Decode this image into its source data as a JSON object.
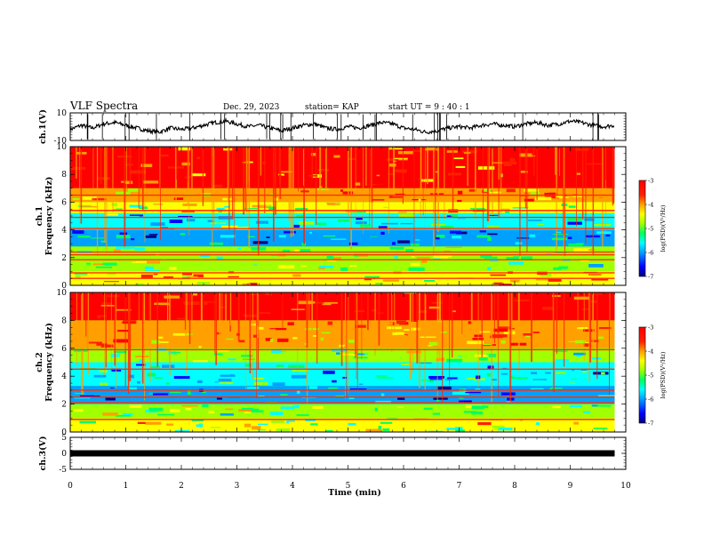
{
  "header": {
    "title": "VLF Spectra",
    "date": "Dec. 29, 2023",
    "station": "station= KAP",
    "start": "start  UT =   9 : 40 : 1"
  },
  "colors": {
    "spectrogram_scale": [
      "#000080",
      "#0000ff",
      "#00a0ff",
      "#00ffff",
      "#00ff60",
      "#a0ff00",
      "#ffff00",
      "#ffa000",
      "#ff2000",
      "#ff0000"
    ],
    "trace": "#000000"
  },
  "chart_data": [
    {
      "type": "line",
      "panel": "ch1-waveform",
      "ylabel": "ch.1(V)",
      "ylim": [
        -10,
        10
      ],
      "y_ticks": [
        "10",
        "-10"
      ],
      "xlim": [
        0,
        9.8
      ],
      "series": [
        {
          "x": [
            0,
            0.2,
            0.4,
            0.6,
            0.8,
            1.0,
            1.2,
            1.4,
            1.6,
            1.8,
            2.0,
            2.2,
            2.4,
            2.6,
            2.8,
            3.0,
            3.2,
            3.4,
            3.6,
            3.8,
            4.0,
            4.2,
            4.4,
            4.6,
            4.8,
            5.0,
            5.2,
            5.4,
            5.6,
            5.8,
            6.0,
            6.2,
            6.4,
            6.6,
            6.8,
            7.0,
            7.2,
            7.4,
            7.6,
            7.8,
            8.0,
            8.2,
            8.4,
            8.6,
            8.8,
            9.0,
            9.2,
            9.4,
            9.6,
            9.8
          ],
          "values": [
            -2,
            1,
            -1,
            2,
            3,
            1,
            -1,
            -3,
            -4,
            -1,
            -2,
            -1,
            1,
            3,
            4,
            2,
            0,
            1,
            -1,
            -3,
            -1,
            1,
            2,
            -1,
            -2,
            0,
            -1,
            1,
            3,
            2,
            -1,
            -2,
            -4,
            -3,
            -1,
            0,
            -1,
            1,
            2,
            1,
            0,
            2,
            3,
            1,
            2,
            4,
            3,
            1,
            0,
            1
          ]
        }
      ]
    },
    {
      "type": "heatmap",
      "panel": "ch1-spectrogram",
      "ylabel": "ch.1 Frequency (kHz)",
      "ylim": [
        0,
        10
      ],
      "y_ticks": [
        "0",
        "2",
        "4",
        "6",
        "8",
        "10"
      ],
      "xlim": [
        0,
        9.8
      ],
      "colorbar": {
        "label": "log(PSD)(V²/Hz)",
        "range": [
          -7,
          -3
        ],
        "ticks": [
          "-3",
          "-4",
          "-5",
          "-6",
          "-7"
        ]
      },
      "bands": [
        {
          "freq_khz": [
            7.0,
            10.0
          ],
          "log_psd": -3.3
        },
        {
          "freq_khz": [
            6.0,
            7.0
          ],
          "log_psd": -4.0
        },
        {
          "freq_khz": [
            5.2,
            6.0
          ],
          "log_psd": -4.6
        },
        {
          "freq_khz": [
            4.0,
            5.2
          ],
          "log_psd": -5.5
        },
        {
          "freq_khz": [
            2.8,
            4.0
          ],
          "log_psd": -6.0
        },
        {
          "freq_khz": [
            2.3,
            2.8
          ],
          "log_psd": -4.8
        },
        {
          "freq_khz": [
            1.0,
            2.3
          ],
          "log_psd": -4.9
        },
        {
          "freq_khz": [
            0.0,
            1.0
          ],
          "log_psd": -4.3
        }
      ],
      "lines_khz": [
        6.5,
        5.4,
        4.9,
        4.1,
        2.4,
        2.2,
        1.85,
        0.9,
        0.5
      ]
    },
    {
      "type": "heatmap",
      "panel": "ch2-spectrogram",
      "ylabel": "ch.2 Frequency (kHz)",
      "ylim": [
        0,
        10
      ],
      "y_ticks": [
        "0",
        "2",
        "4",
        "6",
        "8",
        "10"
      ],
      "xlim": [
        0,
        9.8
      ],
      "colorbar": {
        "label": "log(PSD)(V²/Hz)",
        "range": [
          -7,
          -3
        ],
        "ticks": [
          "-3",
          "-4",
          "-5",
          "-6",
          "-7"
        ]
      },
      "bands": [
        {
          "freq_khz": [
            8.0,
            10.0
          ],
          "log_psd": -3.2
        },
        {
          "freq_khz": [
            6.0,
            8.0
          ],
          "log_psd": -3.9
        },
        {
          "freq_khz": [
            5.0,
            6.0
          ],
          "log_psd": -4.9
        },
        {
          "freq_khz": [
            3.3,
            5.0
          ],
          "log_psd": -5.7
        },
        {
          "freq_khz": [
            2.0,
            3.3
          ],
          "log_psd": -6.0
        },
        {
          "freq_khz": [
            1.0,
            2.0
          ],
          "log_psd": -5.0
        },
        {
          "freq_khz": [
            0.0,
            1.0
          ],
          "log_psd": -4.6
        }
      ],
      "lines_khz": [
        5.9,
        4.5,
        3.0,
        2.5,
        2.1,
        0.9
      ]
    },
    {
      "type": "line",
      "panel": "ch3-waveform",
      "ylabel": "ch.3(V)",
      "ylim": [
        -5,
        5
      ],
      "y_ticks": [
        "5",
        "0",
        "-5"
      ],
      "xlim": [
        0,
        9.8
      ],
      "series": [
        {
          "x": [
            0,
            9.8
          ],
          "values": [
            0,
            0
          ]
        }
      ]
    }
  ],
  "xaxis": {
    "label": "Time (min)",
    "range": [
      0,
      10
    ],
    "ticks": [
      "0",
      "1",
      "2",
      "3",
      "4",
      "5",
      "6",
      "7",
      "8",
      "9",
      "10"
    ]
  }
}
